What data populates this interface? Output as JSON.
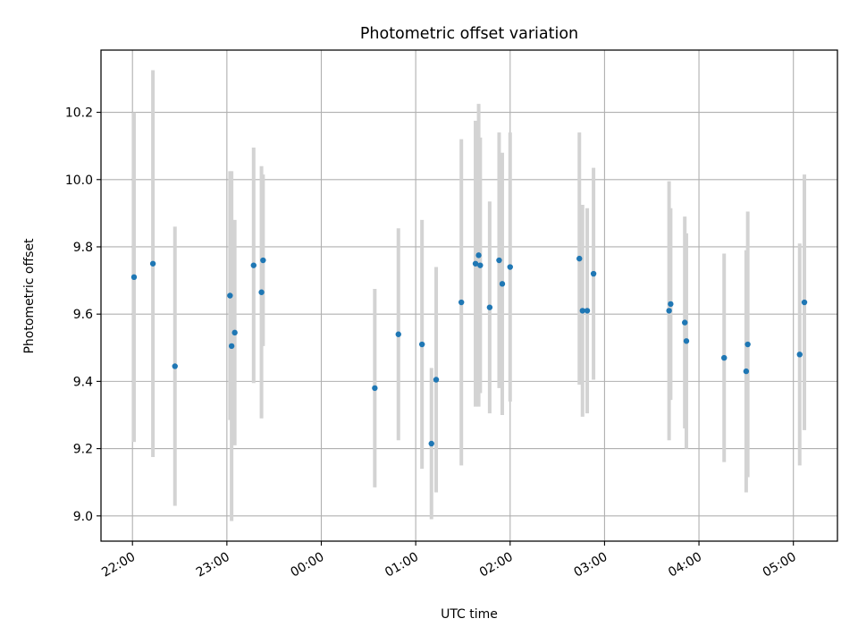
{
  "chart_data": {
    "type": "scatter",
    "title": "Photometric offset variation",
    "xlabel": "UTC time",
    "ylabel": "Photometric offset",
    "x_unit": "UTC time (HH:MM)",
    "x_ticks": [
      "22:00",
      "23:00",
      "00:00",
      "01:00",
      "02:00",
      "03:00",
      "04:00",
      "05:00"
    ],
    "xlim": [
      "21:40",
      "05:28"
    ],
    "y_ticks": [
      "9.0",
      "9.2",
      "9.4",
      "9.6",
      "9.8",
      "10.0",
      "10.2"
    ],
    "ylim": [
      8.925,
      10.385
    ],
    "grid": true,
    "marker_color": "#1f77b4",
    "errorbar_color": "#d3d3d3",
    "series": [
      {
        "points": [
          {
            "x": "22:01",
            "y": 9.71,
            "yerr": 0.49
          },
          {
            "x": "22:13",
            "y": 9.75,
            "yerr": 0.575
          },
          {
            "x": "22:27",
            "y": 9.445,
            "yerr": 0.415
          },
          {
            "x": "23:02",
            "y": 9.655,
            "yerr": 0.37
          },
          {
            "x": "23:03",
            "y": 9.505,
            "yerr": 0.52
          },
          {
            "x": "23:05",
            "y": 9.545,
            "yerr": 0.335
          },
          {
            "x": "23:17",
            "y": 9.745,
            "yerr": 0.35
          },
          {
            "x": "23:22",
            "y": 9.665,
            "yerr": 0.375
          },
          {
            "x": "23:23",
            "y": 9.76,
            "yerr": 0.255
          },
          {
            "x": "00:34",
            "y": 9.38,
            "yerr": 0.295
          },
          {
            "x": "00:49",
            "y": 9.54,
            "yerr": 0.315
          },
          {
            "x": "01:04",
            "y": 9.51,
            "yerr": 0.37
          },
          {
            "x": "01:10",
            "y": 9.215,
            "yerr": 0.225
          },
          {
            "x": "01:13",
            "y": 9.405,
            "yerr": 0.335
          },
          {
            "x": "01:29",
            "y": 9.635,
            "yerr": 0.485
          },
          {
            "x": "01:38",
            "y": 9.75,
            "yerr": 0.425
          },
          {
            "x": "01:40",
            "y": 9.775,
            "yerr": 0.45
          },
          {
            "x": "01:41",
            "y": 9.745,
            "yerr": 0.38
          },
          {
            "x": "01:47",
            "y": 9.62,
            "yerr": 0.315
          },
          {
            "x": "01:53",
            "y": 9.76,
            "yerr": 0.38
          },
          {
            "x": "01:55",
            "y": 9.69,
            "yerr": 0.39
          },
          {
            "x": "02:00",
            "y": 9.74,
            "yerr": 0.4
          },
          {
            "x": "02:44",
            "y": 9.765,
            "yerr": 0.375
          },
          {
            "x": "02:46",
            "y": 9.61,
            "yerr": 0.315
          },
          {
            "x": "02:49",
            "y": 9.61,
            "yerr": 0.305
          },
          {
            "x": "02:53",
            "y": 9.72,
            "yerr": 0.315
          },
          {
            "x": "03:41",
            "y": 9.61,
            "yerr": 0.385
          },
          {
            "x": "03:42",
            "y": 9.63,
            "yerr": 0.285
          },
          {
            "x": "03:51",
            "y": 9.575,
            "yerr": 0.315
          },
          {
            "x": "03:52",
            "y": 9.52,
            "yerr": 0.32
          },
          {
            "x": "04:16",
            "y": 9.47,
            "yerr": 0.31
          },
          {
            "x": "04:30",
            "y": 9.43,
            "yerr": 0.36
          },
          {
            "x": "04:31",
            "y": 9.51,
            "yerr": 0.395
          },
          {
            "x": "05:04",
            "y": 9.48,
            "yerr": 0.33
          },
          {
            "x": "05:07",
            "y": 9.635,
            "yerr": 0.38
          }
        ]
      }
    ]
  }
}
